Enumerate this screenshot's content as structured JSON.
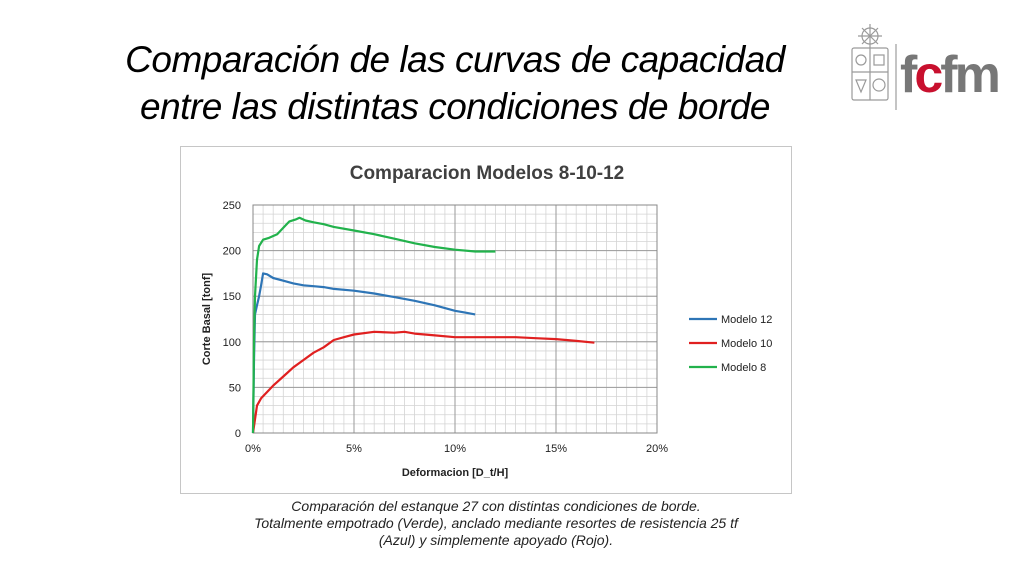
{
  "slide": {
    "title_lines": [
      "Comparación de las curvas de capacidad",
      "entre las distintas condiciones de borde"
    ],
    "logo_text": "fcfm",
    "caption_lines": [
      "Comparación del estanque 27 con distintas condiciones de borde.",
      "Totalmente empotrado (Verde), anclado mediante resortes de resistencia 25 tf",
      "(Azul) y simplemente apoyado (Rojo)."
    ]
  },
  "chart_data": {
    "type": "line",
    "title": "Comparacion Modelos 8-10-12",
    "xlabel": "Deformacion [D_t/H]",
    "ylabel": "Corte Basal [tonf]",
    "xlim": [
      0,
      20
    ],
    "ylim": [
      0,
      250
    ],
    "x_ticks": [
      0,
      5,
      10,
      15,
      20
    ],
    "x_tick_labels": [
      "0%",
      "5%",
      "10%",
      "15%",
      "20%"
    ],
    "y_ticks": [
      0,
      50,
      100,
      150,
      200,
      250
    ],
    "y_tick_labels": [
      "0",
      "50",
      "100",
      "150",
      "200",
      "250"
    ],
    "grid": true,
    "legend_position": "right",
    "series": [
      {
        "name": "Modelo 12",
        "color": "#2e75b6",
        "points": [
          [
            0,
            0
          ],
          [
            0.05,
            80
          ],
          [
            0.1,
            130
          ],
          [
            0.2,
            140
          ],
          [
            0.3,
            150
          ],
          [
            0.4,
            162
          ],
          [
            0.5,
            175
          ],
          [
            0.7,
            174
          ],
          [
            1.0,
            170
          ],
          [
            1.5,
            167
          ],
          [
            2.0,
            164
          ],
          [
            2.5,
            162
          ],
          [
            3.0,
            161
          ],
          [
            3.5,
            160
          ],
          [
            4.0,
            158
          ],
          [
            5.0,
            156
          ],
          [
            6.0,
            153
          ],
          [
            7.0,
            149
          ],
          [
            8.0,
            145
          ],
          [
            9.0,
            140
          ],
          [
            10.0,
            134
          ],
          [
            10.5,
            132
          ],
          [
            11.0,
            130
          ]
        ]
      },
      {
        "name": "Modelo 10",
        "color": "#e02020",
        "points": [
          [
            0,
            0
          ],
          [
            0.1,
            15
          ],
          [
            0.2,
            30
          ],
          [
            0.4,
            38
          ],
          [
            0.7,
            45
          ],
          [
            1.0,
            52
          ],
          [
            1.5,
            62
          ],
          [
            2.0,
            72
          ],
          [
            2.5,
            80
          ],
          [
            3.0,
            88
          ],
          [
            3.5,
            94
          ],
          [
            4.0,
            102
          ],
          [
            4.5,
            105
          ],
          [
            5.0,
            108
          ],
          [
            6.0,
            111
          ],
          [
            7.0,
            110
          ],
          [
            7.5,
            111
          ],
          [
            8.0,
            109
          ],
          [
            9.0,
            107
          ],
          [
            10.0,
            105
          ],
          [
            11.0,
            105
          ],
          [
            12.0,
            105
          ],
          [
            13.0,
            105
          ],
          [
            14.0,
            104
          ],
          [
            15.0,
            103
          ],
          [
            16.0,
            101
          ],
          [
            16.9,
            99
          ]
        ]
      },
      {
        "name": "Modelo 8",
        "color": "#22b24c",
        "points": [
          [
            0,
            0
          ],
          [
            0.05,
            100
          ],
          [
            0.1,
            150
          ],
          [
            0.2,
            190
          ],
          [
            0.3,
            205
          ],
          [
            0.5,
            212
          ],
          [
            0.8,
            214
          ],
          [
            1.0,
            216
          ],
          [
            1.2,
            218
          ],
          [
            1.5,
            225
          ],
          [
            1.8,
            232
          ],
          [
            2.1,
            234
          ],
          [
            2.3,
            236
          ],
          [
            2.6,
            233
          ],
          [
            3.0,
            231
          ],
          [
            3.5,
            229
          ],
          [
            4.0,
            226
          ],
          [
            5.0,
            222
          ],
          [
            6.0,
            218
          ],
          [
            7.0,
            213
          ],
          [
            8.0,
            208
          ],
          [
            9.0,
            204
          ],
          [
            10.0,
            201
          ],
          [
            11.0,
            199
          ],
          [
            12.0,
            199
          ]
        ]
      }
    ]
  }
}
